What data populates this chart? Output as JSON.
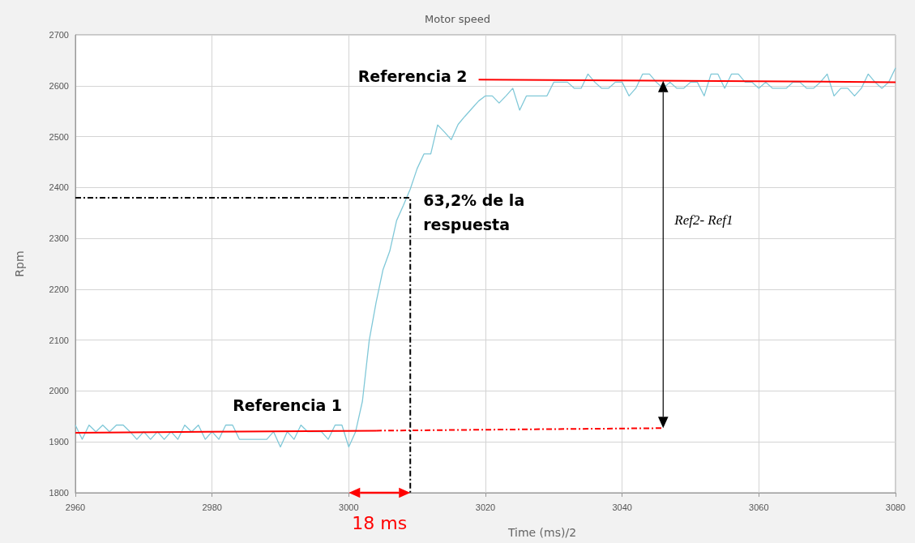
{
  "chart_data": {
    "type": "line",
    "title": "Motor speed",
    "xlabel": "Time (ms)/2",
    "ylabel": "Rpm",
    "xlim": [
      2960,
      3080
    ],
    "xticks": [
      2960,
      2980,
      3000,
      3020,
      3040,
      3060,
      3080
    ],
    "ylim": [
      1800,
      2700
    ],
    "yticks": [
      1800,
      1900,
      2000,
      2100,
      2200,
      2300,
      2400,
      2500,
      2600,
      2700
    ],
    "grid": true,
    "marker": "none",
    "line_style": "solid",
    "x": [
      2960,
      2961,
      2962,
      2963,
      2964,
      2965,
      2966,
      2967,
      2968,
      2969,
      2970,
      2971,
      2972,
      2973,
      2974,
      2975,
      2976,
      2977,
      2978,
      2979,
      2980,
      2981,
      2982,
      2983,
      2984,
      2985,
      2986,
      2987,
      2988,
      2989,
      2990,
      2991,
      2992,
      2993,
      2994,
      2995,
      2996,
      2997,
      2998,
      2999,
      3000,
      3001,
      3002,
      3003,
      3004,
      3005,
      3006,
      3007,
      3008,
      3009,
      3010,
      3011,
      3012,
      3013,
      3014,
      3015,
      3016,
      3017,
      3018,
      3019,
      3020,
      3021,
      3022,
      3023,
      3024,
      3025,
      3026,
      3027,
      3028,
      3029,
      3030,
      3031,
      3032,
      3033,
      3034,
      3035,
      3036,
      3037,
      3038,
      3039,
      3040,
      3041,
      3042,
      3043,
      3044,
      3045,
      3046,
      3047,
      3048,
      3049,
      3050,
      3051,
      3052,
      3053,
      3054,
      3055,
      3056,
      3057,
      3058,
      3059,
      3060,
      3061,
      3062,
      3063,
      3064,
      3065,
      3066,
      3067,
      3068,
      3069,
      3070,
      3071,
      3072,
      3073,
      3074,
      3075,
      3076,
      3077,
      3078,
      3079,
      3080
    ],
    "series": [
      {
        "color": "#80c8d8",
        "values": [
          1933,
          1905,
          1933,
          1920,
          1933,
          1920,
          1933,
          1933,
          1920,
          1905,
          1920,
          1905,
          1920,
          1905,
          1920,
          1905,
          1933,
          1920,
          1933,
          1905,
          1920,
          1905,
          1933,
          1933,
          1905,
          1905,
          1905,
          1905,
          1905,
          1920,
          1890,
          1920,
          1905,
          1933,
          1920,
          1920,
          1920,
          1905,
          1933,
          1933,
          1890,
          1920,
          1980,
          2100,
          2174,
          2238,
          2275,
          2335,
          2365,
          2397,
          2437,
          2466,
          2466,
          2523,
          2509,
          2494,
          2524,
          2540,
          2555,
          2570,
          2580,
          2580,
          2566,
          2580,
          2595,
          2552,
          2580,
          2580,
          2580,
          2580,
          2607,
          2607,
          2607,
          2595,
          2595,
          2623,
          2607,
          2595,
          2595,
          2607,
          2607,
          2580,
          2595,
          2623,
          2623,
          2607,
          2595,
          2607,
          2595,
          2595,
          2607,
          2607,
          2580,
          2623,
          2623,
          2595,
          2623,
          2623,
          2607,
          2607,
          2595,
          2607,
          2595,
          2595,
          2595,
          2607,
          2607,
          2595,
          2595,
          2607,
          2623,
          2580,
          2595,
          2595,
          2580,
          2595,
          2623,
          2607,
          2595,
          2607,
          2635
        ]
      },
      {
        "name": "Referencia 1",
        "color": "#ff0000",
        "x": [
          2960,
          3004
        ],
        "values": [
          1918,
          1922
        ]
      },
      {
        "color": "#ff0000",
        "line_style": "dashed",
        "x": [
          3004,
          3046
        ],
        "values": [
          1922,
          1927
        ]
      },
      {
        "name": "Referencia 2",
        "color": "#ff0000",
        "x": [
          3019,
          3080
        ],
        "values": [
          2612,
          2607
        ]
      },
      {
        "color": "#000000",
        "line_style": "dashed",
        "x": [
          2960,
          3009,
          3009
        ],
        "values": [
          2380,
          2380,
          1800
        ]
      }
    ],
    "annotations": [
      {
        "text": "63,2% de la respuesta",
        "x": 3009,
        "y": 2380
      },
      "Ref2- Ref1",
      "18 ms"
    ]
  }
}
